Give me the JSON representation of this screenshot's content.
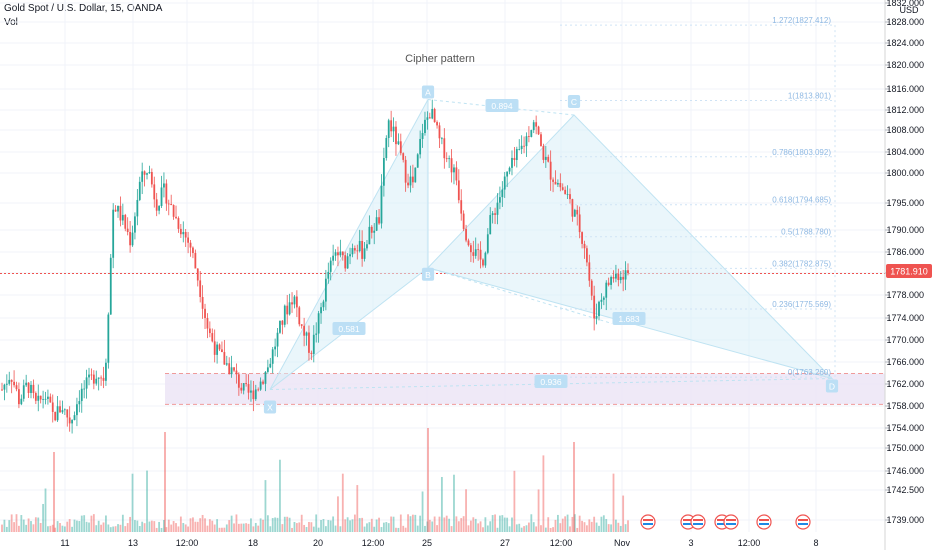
{
  "header": {
    "symbol_title": "Gold Spot / U.S. Dollar, 15, OANDA",
    "volume_label": "Vol"
  },
  "pattern_title": "Cipher pattern",
  "currency": "USD",
  "price_tag": "1781.910",
  "chart_data": {
    "type": "candlestick",
    "title": "Gold Spot / U.S. Dollar, 15, OANDA",
    "y_axis": {
      "label": "USD",
      "ticks": [
        "1739.000",
        "1742.500",
        "1746.000",
        "1750.000",
        "1754.000",
        "1758.000",
        "1762.000",
        "1766.000",
        "1770.000",
        "1774.000",
        "1778.000",
        "1782.000",
        "1786.000",
        "1790.000",
        "1795.000",
        "1800.000",
        "1804.000",
        "1808.000",
        "1812.000",
        "1816.000",
        "1820.000",
        "1824.000",
        "1828.000",
        "1832.000"
      ]
    },
    "x_axis": {
      "ticks": [
        "11",
        "13",
        "12:00",
        "18",
        "20",
        "12:00",
        "25",
        "27",
        "12:00",
        "Nov",
        "3",
        "12:00",
        "8"
      ]
    },
    "last_price": 1781.91,
    "price_series": [
      1761,
      1764,
      1759,
      1762,
      1758,
      1760,
      1756,
      1758,
      1755,
      1760,
      1762,
      1764,
      1763,
      1795,
      1792,
      1788,
      1798,
      1801,
      1795,
      1797,
      1793,
      1790,
      1787,
      1780,
      1772,
      1768,
      1766,
      1764,
      1761,
      1760,
      1762,
      1765,
      1770,
      1775,
      1778,
      1772,
      1768,
      1774,
      1782,
      1786,
      1784,
      1788,
      1786,
      1790,
      1792,
      1810,
      1806,
      1800,
      1798,
      1808,
      1812,
      1806,
      1803,
      1799,
      1790,
      1786,
      1784,
      1792,
      1796,
      1800,
      1803,
      1806,
      1810,
      1804,
      1800,
      1798,
      1796,
      1792,
      1787,
      1774,
      1778,
      1781,
      1782,
      1781.91
    ],
    "pattern": {
      "name": "Cipher pattern",
      "points": [
        {
          "label": "X",
          "price": 1761
        },
        {
          "label": "A",
          "price": 1814
        },
        {
          "label": "B",
          "price": 1783
        },
        {
          "label": "C",
          "price": 1811
        },
        {
          "label": "D",
          "price": 1763
        }
      ],
      "ratios": [
        {
          "label": "0.581",
          "leg": "XA-B"
        },
        {
          "label": "0.894",
          "leg": "A-C"
        },
        {
          "label": "1.683",
          "leg": "BC"
        },
        {
          "label": "0.936",
          "leg": "X-D"
        }
      ]
    },
    "fib_levels": [
      {
        "label": "1.272(1827.412)",
        "price": 1827.412
      },
      {
        "label": "1(1813.801)",
        "price": 1813.801
      },
      {
        "label": "0.786(1803.092)",
        "price": 1803.092
      },
      {
        "label": "0.618(1794.685)",
        "price": 1794.685
      },
      {
        "label": "0.5(1788.780)",
        "price": 1788.78
      },
      {
        "label": "0.382(1782.875)",
        "price": 1782.875
      },
      {
        "label": "0.236(1775.569)",
        "price": 1775.569
      },
      {
        "label": "0(1763.260)",
        "price": 1763.26
      }
    ],
    "colors": {
      "up": "#26a69a",
      "down": "#ef5350",
      "pattern": "#bfe3f2",
      "fib": "#8fb9e3",
      "zone": "#ede7f6"
    }
  }
}
